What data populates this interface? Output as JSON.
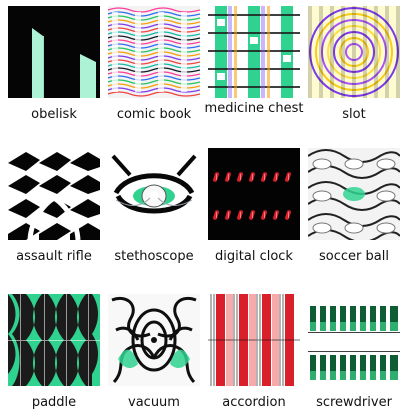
{
  "tiles": [
    {
      "label": "obelisk",
      "icon": "obelisk-pattern-image"
    },
    {
      "label": "comic book",
      "icon": "comic-book-pattern-image"
    },
    {
      "label": "medicine chest",
      "icon": "medicine-chest-pattern-image"
    },
    {
      "label": "slot",
      "icon": "slot-pattern-image"
    },
    {
      "label": "assault rifle",
      "icon": "assault-rifle-pattern-image"
    },
    {
      "label": "stethoscope",
      "icon": "stethoscope-pattern-image"
    },
    {
      "label": "digital clock",
      "icon": "digital-clock-pattern-image"
    },
    {
      "label": "soccer ball",
      "icon": "soccer-ball-pattern-image"
    },
    {
      "label": "paddle",
      "icon": "paddle-pattern-image"
    },
    {
      "label": "vacuum",
      "icon": "vacuum-pattern-image"
    },
    {
      "label": "accordion",
      "icon": "accordion-pattern-image"
    },
    {
      "label": "screwdriver",
      "icon": "screwdriver-pattern-image"
    }
  ],
  "colors": {
    "mint": "#9ff0cf",
    "green": "#2fae70",
    "dark_green": "#0f5d34",
    "black": "#050505",
    "red": "#d91f2a"
  }
}
